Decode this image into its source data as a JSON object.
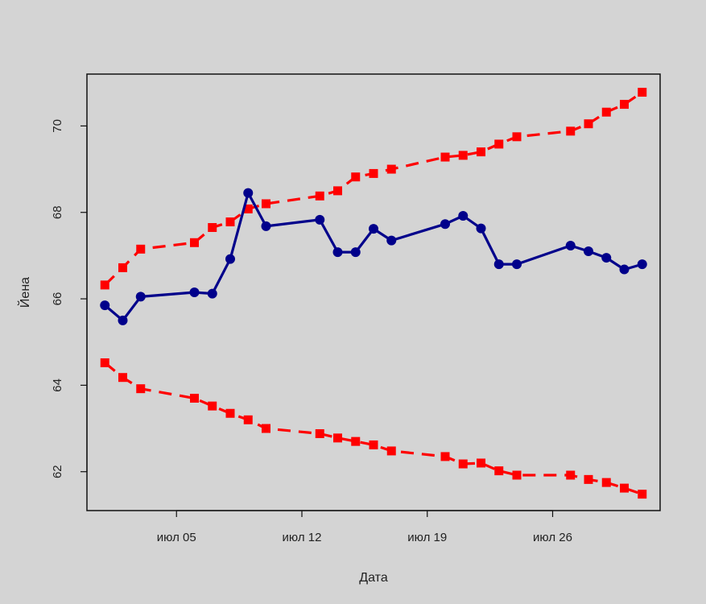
{
  "chart_data": {
    "type": "line",
    "title": "",
    "xlabel": "Дата",
    "ylabel": "Йена",
    "x": [
      "2009-07-01",
      "2009-07-02",
      "2009-07-03",
      "2009-07-06",
      "2009-07-07",
      "2009-07-08",
      "2009-07-09",
      "2009-07-10",
      "2009-07-13",
      "2009-07-14",
      "2009-07-15",
      "2009-07-16",
      "2009-07-17",
      "2009-07-20",
      "2009-07-21",
      "2009-07-22",
      "2009-07-23",
      "2009-07-24",
      "2009-07-27",
      "2009-07-28",
      "2009-07-29",
      "2009-07-30",
      "2009-07-31"
    ],
    "xlim": [
      "2009-06-30",
      "2009-08-01"
    ],
    "ylim": [
      61.1,
      71.2
    ],
    "x_ticks": [
      {
        "date": "2009-07-05",
        "label": "июл 05"
      },
      {
        "date": "2009-07-12",
        "label": "июл 12"
      },
      {
        "date": "2009-07-19",
        "label": "июл 19"
      },
      {
        "date": "2009-07-26",
        "label": "июл 26"
      }
    ],
    "y_ticks": [
      62,
      64,
      66,
      68,
      70
    ],
    "y_tick_labels": [
      "62",
      "64",
      "66",
      "68",
      "70"
    ],
    "grid": false,
    "legend": "none",
    "series": [
      {
        "color": "#00008b",
        "line_style": "solid",
        "marker": "circle",
        "x_source": [
          "2009-07-01",
          "2009-07-02",
          "2009-07-03",
          "2009-07-06",
          "2009-07-07",
          "2009-07-08",
          "2009-07-09",
          "2009-07-10",
          "2009-07-13",
          "2009-07-14",
          "2009-07-15",
          "2009-07-16",
          "2009-07-17",
          "2009-07-20",
          "2009-07-21",
          "2009-07-22",
          "2009-07-23",
          "2009-07-24",
          "2009-07-27",
          "2009-07-28",
          "2009-07-29",
          "2009-07-30",
          "2009-07-31"
        ],
        "values": [
          65.85,
          65.5,
          66.05,
          66.15,
          66.12,
          66.92,
          68.45,
          67.68,
          67.83,
          67.08,
          67.08,
          67.62,
          67.35,
          67.73,
          67.92,
          67.63,
          66.8,
          66.8,
          67.23,
          67.1,
          66.95,
          66.68,
          66.8
        ]
      },
      {
        "color": "#ff0000",
        "line_style": "dashed",
        "marker": "square",
        "values": [
          66.32,
          66.72,
          67.15,
          67.3,
          67.65,
          67.78,
          68.08,
          68.2,
          68.38,
          68.5,
          68.82,
          68.9,
          69.0,
          69.28,
          69.32,
          69.4,
          69.58,
          69.75,
          69.88,
          70.05,
          70.32,
          70.5,
          70.78
        ]
      },
      {
        "color": "#ff0000",
        "line_style": "dashed",
        "marker": "square",
        "values": [
          64.52,
          64.18,
          63.92,
          63.7,
          63.52,
          63.35,
          63.2,
          63.0,
          62.88,
          62.78,
          62.7,
          62.62,
          62.48,
          62.35,
          62.18,
          62.2,
          62.02,
          61.92,
          61.92,
          61.82,
          61.75,
          61.62,
          61.48
        ]
      }
    ]
  }
}
